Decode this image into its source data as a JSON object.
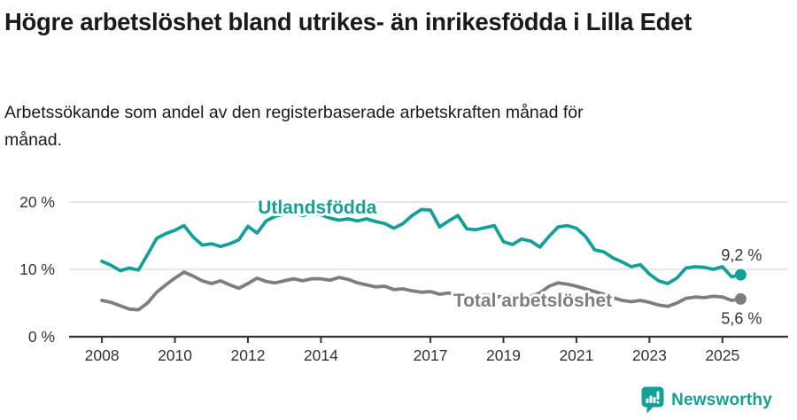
{
  "colors": {
    "accent_teal": "#14a096",
    "series_gray": "#7e7e7e",
    "grid": "#e0e0e0",
    "axis": "#333333",
    "text": "#1a1a1a"
  },
  "footer": {
    "brand": "Newsworthy"
  },
  "chart_data": {
    "type": "line",
    "title": "Högre arbetslöshet bland utrikes- än inrikesfödda i Lilla Edet",
    "subtitle": "Arbetssökande som andel av den registerbaserade arbetskraften månad för månad.",
    "x_unit": "year",
    "x_start": 2008.0,
    "x_step": 0.25,
    "xlim": [
      2007.1,
      2026.8
    ],
    "ylim": [
      0,
      21
    ],
    "grid": "horizontal",
    "legend": "inline-labels",
    "yticks": [
      {
        "value": 0,
        "label": "0 %"
      },
      {
        "value": 10,
        "label": "10 %"
      },
      {
        "value": 20,
        "label": "20 %"
      }
    ],
    "xticks": [
      {
        "value": 2008,
        "label": "2008"
      },
      {
        "value": 2010,
        "label": "2010"
      },
      {
        "value": 2012,
        "label": "2012"
      },
      {
        "value": 2014,
        "label": "2014"
      },
      {
        "value": 2017,
        "label": "2017"
      },
      {
        "value": 2019,
        "label": "2019"
      },
      {
        "value": 2021,
        "label": "2021"
      },
      {
        "value": 2023,
        "label": "2023"
      },
      {
        "value": 2025,
        "label": "2025"
      }
    ],
    "series": [
      {
        "name": "Utlandsfödda",
        "color": "#14a096",
        "end_value": 9.2,
        "end_label": "9,2 %",
        "values": [
          11.2,
          10.6,
          9.8,
          10.2,
          9.9,
          12.2,
          14.6,
          15.3,
          15.8,
          16.5,
          14.8,
          13.6,
          13.8,
          13.4,
          13.8,
          14.4,
          16.4,
          15.4,
          17.2,
          17.9,
          18.2,
          18.5,
          18.0,
          18.3,
          18.1,
          17.6,
          17.3,
          17.5,
          17.2,
          17.5,
          17.1,
          16.8,
          16.1,
          16.8,
          18.0,
          18.9,
          18.8,
          16.3,
          17.2,
          18.0,
          16.0,
          15.9,
          16.2,
          16.5,
          14.1,
          13.7,
          14.5,
          14.2,
          13.3,
          14.9,
          16.3,
          16.5,
          16.1,
          14.9,
          12.9,
          12.6,
          11.7,
          11.1,
          10.4,
          10.7,
          9.3,
          8.3,
          7.9,
          8.7,
          10.2,
          10.4,
          10.3,
          10.0,
          10.4,
          8.9,
          9.2
        ]
      },
      {
        "name": "Total arbetslöshet",
        "color": "#7e7e7e",
        "end_value": 5.6,
        "end_label": "5,6 %",
        "values": [
          5.4,
          5.1,
          4.6,
          4.1,
          4.0,
          5.0,
          6.6,
          7.7,
          8.7,
          9.6,
          9.0,
          8.3,
          7.9,
          8.3,
          7.7,
          7.2,
          7.9,
          8.7,
          8.2,
          8.0,
          8.3,
          8.6,
          8.3,
          8.6,
          8.6,
          8.4,
          8.8,
          8.5,
          8.0,
          7.7,
          7.4,
          7.5,
          7.0,
          7.1,
          6.8,
          6.6,
          6.7,
          6.3,
          6.5,
          6.2,
          6.1,
          5.9,
          6.2,
          6.0,
          5.9,
          6.1,
          5.8,
          6.0,
          6.5,
          7.5,
          8.0,
          7.8,
          7.5,
          7.1,
          6.7,
          6.3,
          5.8,
          5.4,
          5.2,
          5.4,
          5.1,
          4.7,
          4.5,
          5.0,
          5.7,
          5.9,
          5.8,
          6.0,
          5.9,
          5.4,
          5.6
        ]
      }
    ],
    "annotations": [
      {
        "text": "Utlandsfödda",
        "series": 0,
        "x": 2013.9,
        "y": 19.2
      },
      {
        "text": "Total arbetslöshet",
        "series": 1,
        "x": 2019.8,
        "y": 5.4
      }
    ]
  }
}
